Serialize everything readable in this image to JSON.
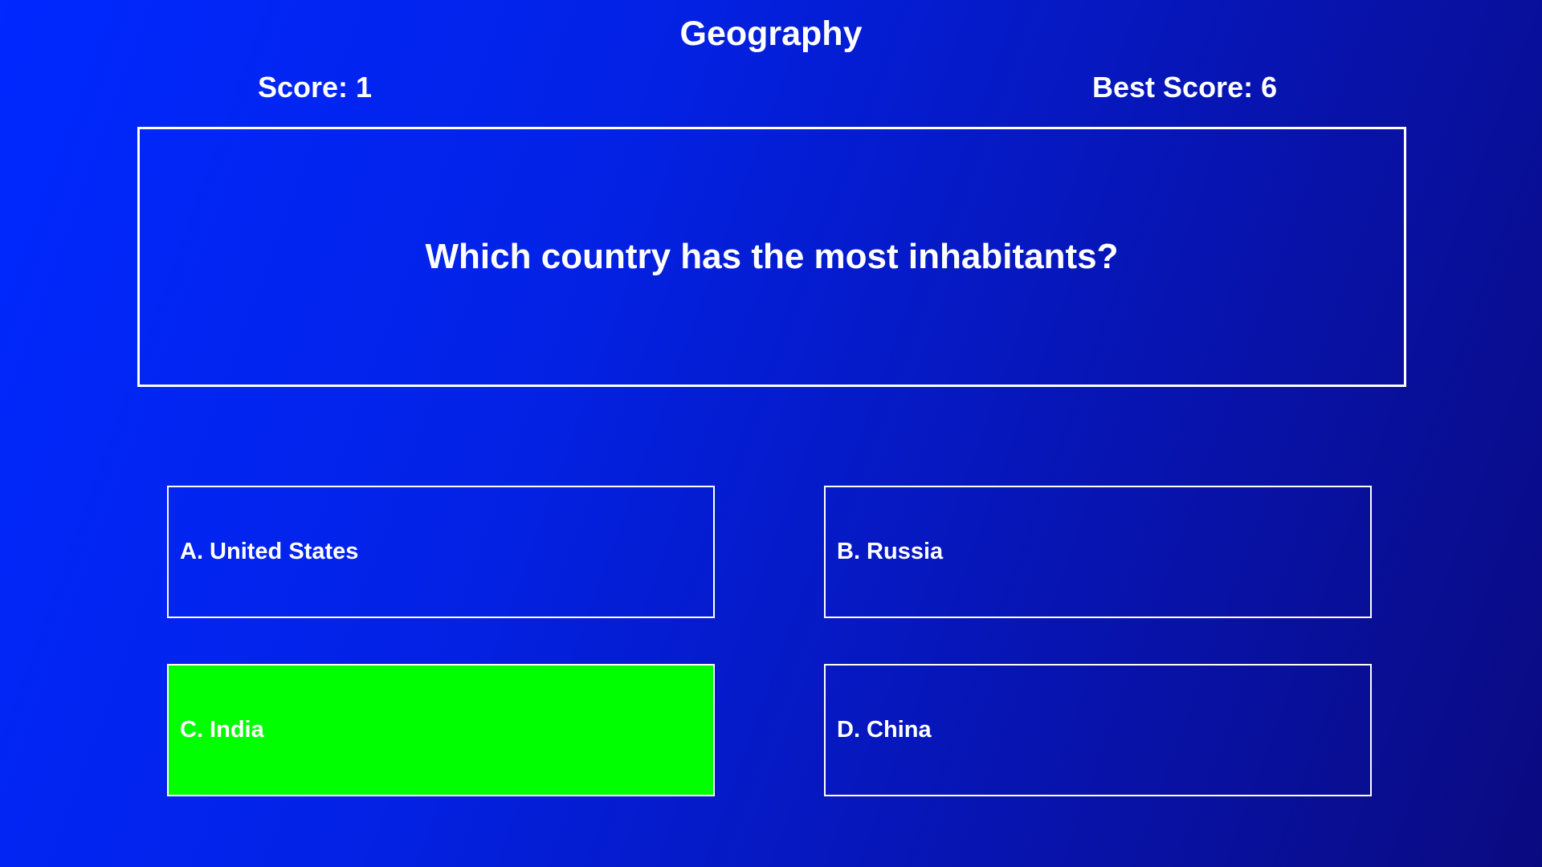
{
  "header": {
    "title": "Geography",
    "score": "Score: 1",
    "best_score": "Best Score: 6"
  },
  "question": "Which country has the most inhabitants?",
  "answers": [
    {
      "label": "A. United States",
      "state": "default"
    },
    {
      "label": "B. Russia",
      "state": "default"
    },
    {
      "label": "C. India",
      "state": "correct"
    },
    {
      "label": "D. China",
      "state": "default"
    }
  ],
  "colors": {
    "background_start": "#0028ff",
    "background_end": "#0a0a80",
    "correct": "#00ff00",
    "text": "#ffffff"
  }
}
